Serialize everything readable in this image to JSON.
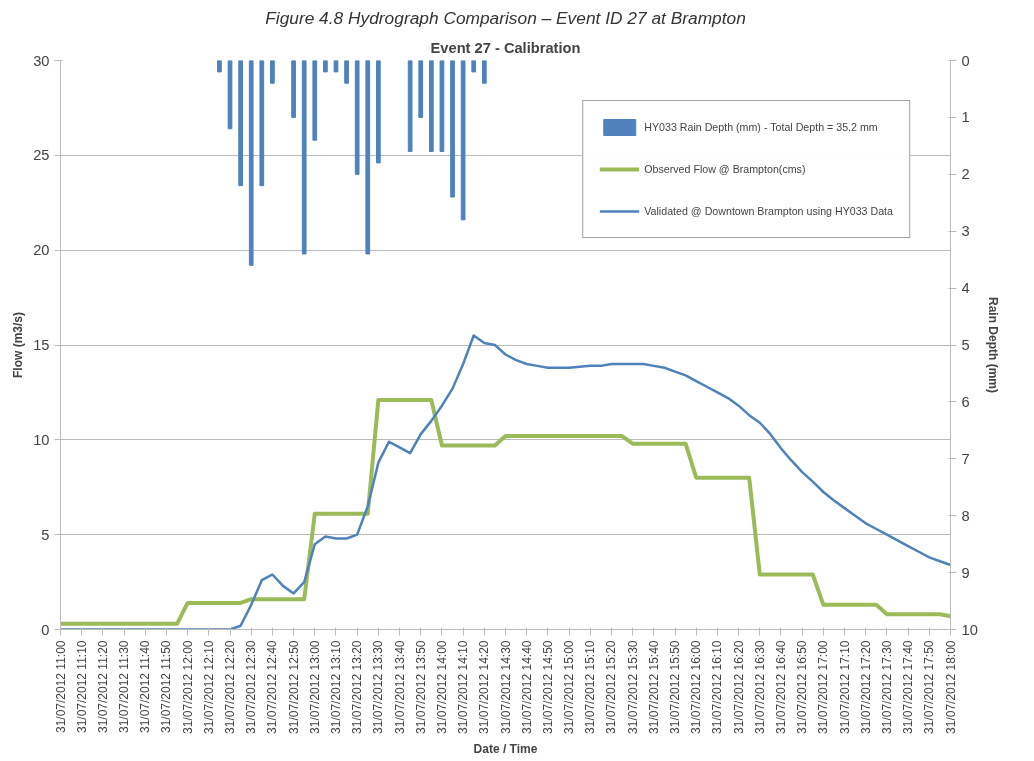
{
  "chart_data": {
    "type": "line",
    "title": "Event 27 - Calibration",
    "annotations": [
      "Figure 4.8 Hydrograph Comparison – Event ID 27 at Brampton"
    ],
    "xlabel": "Date / Time",
    "ylabel": "Flow (m3/s)",
    "y2label": "Rain Depth (mm)",
    "x": [
      "2012-07-31T11:00",
      "2012-07-31T11:05",
      "2012-07-31T11:10",
      "2012-07-31T11:15",
      "2012-07-31T11:20",
      "2012-07-31T11:25",
      "2012-07-31T11:30",
      "2012-07-31T11:35",
      "2012-07-31T11:40",
      "2012-07-31T11:45",
      "2012-07-31T11:50",
      "2012-07-31T11:55",
      "2012-07-31T12:00",
      "2012-07-31T12:05",
      "2012-07-31T12:10",
      "2012-07-31T12:15",
      "2012-07-31T12:20",
      "2012-07-31T12:25",
      "2012-07-31T12:30",
      "2012-07-31T12:35",
      "2012-07-31T12:40",
      "2012-07-31T12:45",
      "2012-07-31T12:50",
      "2012-07-31T12:55",
      "2012-07-31T13:00",
      "2012-07-31T13:05",
      "2012-07-31T13:10",
      "2012-07-31T13:15",
      "2012-07-31T13:20",
      "2012-07-31T13:25",
      "2012-07-31T13:30",
      "2012-07-31T13:35",
      "2012-07-31T13:40",
      "2012-07-31T13:45",
      "2012-07-31T13:50",
      "2012-07-31T13:55",
      "2012-07-31T14:00",
      "2012-07-31T14:05",
      "2012-07-31T14:10",
      "2012-07-31T14:15",
      "2012-07-31T14:20",
      "2012-07-31T14:25",
      "2012-07-31T14:30",
      "2012-07-31T14:35",
      "2012-07-31T14:40",
      "2012-07-31T14:45",
      "2012-07-31T14:50",
      "2012-07-31T14:55",
      "2012-07-31T15:00",
      "2012-07-31T15:05",
      "2012-07-31T15:10",
      "2012-07-31T15:15",
      "2012-07-31T15:20",
      "2012-07-31T15:25",
      "2012-07-31T15:30",
      "2012-07-31T15:35",
      "2012-07-31T15:40",
      "2012-07-31T15:45",
      "2012-07-31T15:50",
      "2012-07-31T15:55",
      "2012-07-31T16:00",
      "2012-07-31T16:05",
      "2012-07-31T16:10",
      "2012-07-31T16:15",
      "2012-07-31T16:20",
      "2012-07-31T16:25",
      "2012-07-31T16:30",
      "2012-07-31T16:35",
      "2012-07-31T16:40",
      "2012-07-31T16:45",
      "2012-07-31T16:50",
      "2012-07-31T16:55",
      "2012-07-31T17:00",
      "2012-07-31T17:05",
      "2012-07-31T17:10",
      "2012-07-31T17:15",
      "2012-07-31T17:20",
      "2012-07-31T17:25",
      "2012-07-31T17:30",
      "2012-07-31T17:35",
      "2012-07-31T17:40",
      "2012-07-31T17:45",
      "2012-07-31T17:50",
      "2012-07-31T17:55",
      "2012-07-31T18:00"
    ],
    "series": [
      {
        "name": "HY033 Rain Depth (mm) - Total Depth = 35.2 mm",
        "type": "bar",
        "axis": "y2",
        "color": "#4f81bd",
        "x": [
          "2012-07-31T12:15",
          "2012-07-31T12:20",
          "2012-07-31T12:25",
          "2012-07-31T12:30",
          "2012-07-31T12:35",
          "2012-07-31T12:40",
          "2012-07-31T12:50",
          "2012-07-31T12:55",
          "2012-07-31T13:00",
          "2012-07-31T13:05",
          "2012-07-31T13:10",
          "2012-07-31T13:15",
          "2012-07-31T13:20",
          "2012-07-31T13:25",
          "2012-07-31T13:30",
          "2012-07-31T13:45",
          "2012-07-31T13:50",
          "2012-07-31T13:55",
          "2012-07-31T14:00",
          "2012-07-31T14:05",
          "2012-07-31T14:10",
          "2012-07-31T14:15",
          "2012-07-31T14:20"
        ],
        "values": [
          0.2,
          1.2,
          2.2,
          3.6,
          2.2,
          0.4,
          1.0,
          3.4,
          1.4,
          0.2,
          0.2,
          0.4,
          2.0,
          3.4,
          1.8,
          1.6,
          1.0,
          1.6,
          1.6,
          2.4,
          2.8,
          0.2,
          0.4
        ]
      },
      {
        "name": "Observed Flow @ Brampton(cms)",
        "color": "#9bbb59",
        "values": [
          0.3,
          0.3,
          0.3,
          0.3,
          0.3,
          0.3,
          0.3,
          0.3,
          0.3,
          0.3,
          0.3,
          0.3,
          1.4,
          1.4,
          1.4,
          1.4,
          1.4,
          1.4,
          1.6,
          1.6,
          1.6,
          1.6,
          1.6,
          1.6,
          6.1,
          6.1,
          6.1,
          6.1,
          6.1,
          6.1,
          12.1,
          12.1,
          12.1,
          12.1,
          12.1,
          12.1,
          9.7,
          9.7,
          9.7,
          9.7,
          9.7,
          9.7,
          10.2,
          10.2,
          10.2,
          10.2,
          10.2,
          10.2,
          10.2,
          10.2,
          10.2,
          10.2,
          10.2,
          10.2,
          9.8,
          9.8,
          9.8,
          9.8,
          9.8,
          9.8,
          8.0,
          8.0,
          8.0,
          8.0,
          8.0,
          8.0,
          2.9,
          2.9,
          2.9,
          2.9,
          2.9,
          2.9,
          1.3,
          1.3,
          1.3,
          1.3,
          1.3,
          1.3,
          0.8,
          0.8,
          0.8,
          0.8,
          0.8,
          0.8,
          0.7
        ]
      },
      {
        "name": "Validated @ Downtown Brampton using HY033 Data",
        "color": "#4f81bd",
        "values": [
          0,
          0,
          0,
          0,
          0,
          0,
          0,
          0,
          0,
          0,
          0,
          0,
          0,
          0,
          0,
          0,
          0,
          0.2,
          1.3,
          2.6,
          2.9,
          2.3,
          1.9,
          2.5,
          4.5,
          4.9,
          4.8,
          4.8,
          5.0,
          6.5,
          8.8,
          9.9,
          9.6,
          9.3,
          10.3,
          11.0,
          11.8,
          12.7,
          14.0,
          15.5,
          15.1,
          15.0,
          14.5,
          14.2,
          14.0,
          13.9,
          13.8,
          13.8,
          13.8,
          13.85,
          13.9,
          13.9,
          14.0,
          14.0,
          14.0,
          14.0,
          13.9,
          13.8,
          13.6,
          13.4,
          13.1,
          12.8,
          12.5,
          12.2,
          11.8,
          11.3,
          10.9,
          10.3,
          9.55,
          8.9,
          8.3,
          7.8,
          7.25,
          6.8,
          6.4,
          6.0,
          5.6,
          5.3,
          5.0,
          4.7,
          4.4,
          4.1,
          3.8,
          3.6,
          3.4
        ]
      }
    ],
    "xlim": [
      "2012-07-31T11:00",
      "2012-07-31T18:00"
    ],
    "xticks": [
      {
        "value": "2012-07-31T11:00",
        "label": "31/07/2012 11:00"
      },
      {
        "value": "2012-07-31T11:10",
        "label": "31/07/2012 11:10"
      },
      {
        "value": "2012-07-31T11:20",
        "label": "31/07/2012 11:20"
      },
      {
        "value": "2012-07-31T11:30",
        "label": "31/07/2012 11:30"
      },
      {
        "value": "2012-07-31T11:40",
        "label": "31/07/2012 11:40"
      },
      {
        "value": "2012-07-31T11:50",
        "label": "31/07/2012 11:50"
      },
      {
        "value": "2012-07-31T12:00",
        "label": "31/07/2012 12:00"
      },
      {
        "value": "2012-07-31T12:10",
        "label": "31/07/2012 12:10"
      },
      {
        "value": "2012-07-31T12:20",
        "label": "31/07/2012 12:20"
      },
      {
        "value": "2012-07-31T12:30",
        "label": "31/07/2012 12:30"
      },
      {
        "value": "2012-07-31T12:40",
        "label": "31/07/2012 12:40"
      },
      {
        "value": "2012-07-31T12:50",
        "label": "31/07/2012 12:50"
      },
      {
        "value": "2012-07-31T13:00",
        "label": "31/07/2012 13:00"
      },
      {
        "value": "2012-07-31T13:10",
        "label": "31/07/2012 13:10"
      },
      {
        "value": "2012-07-31T13:20",
        "label": "31/07/2012 13:20"
      },
      {
        "value": "2012-07-31T13:30",
        "label": "31/07/2012 13:30"
      },
      {
        "value": "2012-07-31T13:40",
        "label": "31/07/2012 13:40"
      },
      {
        "value": "2012-07-31T13:50",
        "label": "31/07/2012 13:50"
      },
      {
        "value": "2012-07-31T14:00",
        "label": "31/07/2012 14:00"
      },
      {
        "value": "2012-07-31T14:10",
        "label": "31/07/2012 14:10"
      },
      {
        "value": "2012-07-31T14:20",
        "label": "31/07/2012 14:20"
      },
      {
        "value": "2012-07-31T14:30",
        "label": "31/07/2012 14:30"
      },
      {
        "value": "2012-07-31T14:40",
        "label": "31/07/2012 14:40"
      },
      {
        "value": "2012-07-31T14:50",
        "label": "31/07/2012 14:50"
      },
      {
        "value": "2012-07-31T15:00",
        "label": "31/07/2012 15:00"
      },
      {
        "value": "2012-07-31T15:10",
        "label": "31/07/2012 15:10"
      },
      {
        "value": "2012-07-31T15:20",
        "label": "31/07/2012 15:20"
      },
      {
        "value": "2012-07-31T15:30",
        "label": "31/07/2012 15:30"
      },
      {
        "value": "2012-07-31T15:40",
        "label": "31/07/2012 15:40"
      },
      {
        "value": "2012-07-31T15:50",
        "label": "31/07/2012 15:50"
      },
      {
        "value": "2012-07-31T16:00",
        "label": "31/07/2012 16:00"
      },
      {
        "value": "2012-07-31T16:10",
        "label": "31/07/2012 16:10"
      },
      {
        "value": "2012-07-31T16:20",
        "label": "31/07/2012 16:20"
      },
      {
        "value": "2012-07-31T16:30",
        "label": "31/07/2012 16:30"
      },
      {
        "value": "2012-07-31T16:40",
        "label": "31/07/2012 16:40"
      },
      {
        "value": "2012-07-31T16:50",
        "label": "31/07/2012 16:50"
      },
      {
        "value": "2012-07-31T17:00",
        "label": "31/07/2012 17:00"
      },
      {
        "value": "2012-07-31T17:10",
        "label": "31/07/2012 17:10"
      },
      {
        "value": "2012-07-31T17:20",
        "label": "31/07/2012 17:20"
      },
      {
        "value": "2012-07-31T17:30",
        "label": "31/07/2012 17:30"
      },
      {
        "value": "2012-07-31T17:40",
        "label": "31/07/2012 17:40"
      },
      {
        "value": "2012-07-31T17:50",
        "label": "31/07/2012 17:50"
      },
      {
        "value": "2012-07-31T18:00",
        "label": "31/07/2012 18:00"
      }
    ],
    "ylim": [
      0,
      30
    ],
    "yticks": [
      0,
      5,
      10,
      15,
      20,
      25,
      30
    ],
    "y2lim": [
      10,
      0
    ],
    "y2ticks": [
      0,
      1,
      2,
      3,
      4,
      5,
      6,
      7,
      8,
      9,
      10
    ],
    "grid": "y",
    "legend": "top right"
  }
}
